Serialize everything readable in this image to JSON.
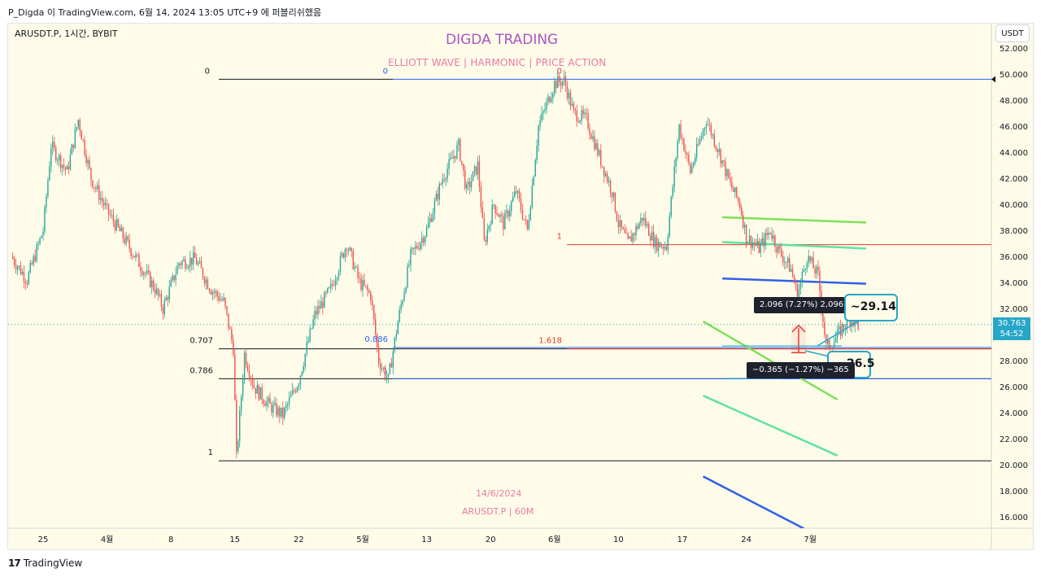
{
  "window": {
    "caption": "P_Digda 이 TradingView.com, 6월 14, 2024 13:05 UTC+9 에 퍼블리쉬했음"
  },
  "symbol_line": "ARUSDT.P, 1시간, BYBIT",
  "brand": {
    "title": "DIGDA TRADING",
    "subtitle": "ELLIOTT WAVE   |   HARMONIC   |   PRICE ACTION"
  },
  "stamp": {
    "date": "14/6/2024",
    "symbol": "ARUSDT.P | 60M"
  },
  "currency_button": "USDT",
  "last_price": {
    "price": "30.763",
    "countdown": "54:52"
  },
  "footer": {
    "logo_text": "TradingView"
  },
  "tooltips": {
    "upper": "2.096 (7.27%) 2,096",
    "lower": "−0.365 (−1.27%) −365"
  },
  "callouts": {
    "upper": "~29.14",
    "lower": "26.5"
  },
  "chart_data": {
    "type": "line",
    "series_kind": "candlestick",
    "ylim": [
      14.8,
      53.0
    ],
    "y_ticks": [
      "16.000",
      "18.000",
      "20.000",
      "22.000",
      "24.000",
      "26.000",
      "28.000",
      "30.000",
      "32.000",
      "34.000",
      "36.000",
      "38.000",
      "40.000",
      "42.000",
      "44.000",
      "46.000",
      "48.000",
      "50.000",
      "52.000"
    ],
    "x_ticks": [
      "25",
      "4월",
      "8",
      "15",
      "22",
      "5월",
      "13",
      "20",
      "6월",
      "10",
      "17",
      "24",
      "7월"
    ],
    "x_tick_values": [
      0,
      4,
      8,
      12,
      16,
      20,
      24,
      28,
      32,
      36,
      40,
      44,
      48
    ],
    "xlim": [
      -2.0,
      51.5
    ],
    "price_path": [
      [
        -2.0,
        36.0
      ],
      [
        -1.0,
        34.2
      ],
      [
        0.0,
        38.0
      ],
      [
        0.5,
        44.5
      ],
      [
        1.5,
        42.5
      ],
      [
        2.2,
        46.5
      ],
      [
        3.0,
        42.0
      ],
      [
        4.0,
        39.5
      ],
      [
        5.0,
        37.5
      ],
      [
        6.0,
        35.5
      ],
      [
        7.0,
        33.5
      ],
      [
        7.5,
        32.0
      ],
      [
        8.5,
        35.5
      ],
      [
        9.5,
        35.8
      ],
      [
        10.5,
        33.5
      ],
      [
        11.3,
        32.5
      ],
      [
        11.9,
        29.0
      ],
      [
        12.1,
        20.5
      ],
      [
        12.6,
        28.5
      ],
      [
        13.2,
        26.0
      ],
      [
        14.2,
        24.5
      ],
      [
        15.0,
        23.8
      ],
      [
        16.0,
        26.5
      ],
      [
        16.5,
        29.0
      ],
      [
        17.0,
        31.5
      ],
      [
        18.0,
        33.5
      ],
      [
        19.0,
        37.0
      ],
      [
        19.8,
        34.0
      ],
      [
        20.5,
        33.0
      ],
      [
        21.0,
        28.0
      ],
      [
        21.6,
        26.5
      ],
      [
        22.2,
        31.0
      ],
      [
        23.0,
        36.0
      ],
      [
        24.0,
        38.0
      ],
      [
        25.0,
        42.0
      ],
      [
        26.0,
        44.5
      ],
      [
        26.5,
        41.0
      ],
      [
        27.2,
        43.0
      ],
      [
        27.6,
        37.0
      ],
      [
        28.2,
        40.0
      ],
      [
        28.8,
        38.5
      ],
      [
        29.6,
        41.0
      ],
      [
        30.3,
        38.0
      ],
      [
        31.0,
        46.0
      ],
      [
        32.0,
        49.3
      ],
      [
        32.6,
        49.5
      ],
      [
        33.2,
        47.0
      ],
      [
        34.0,
        46.5
      ],
      [
        35.0,
        43.0
      ],
      [
        35.6,
        41.0
      ],
      [
        36.0,
        38.5
      ],
      [
        36.6,
        37.0
      ],
      [
        37.5,
        39.0
      ],
      [
        38.3,
        37.0
      ],
      [
        39.0,
        36.8
      ],
      [
        39.8,
        46.0
      ],
      [
        40.5,
        42.5
      ],
      [
        41.5,
        46.5
      ],
      [
        42.3,
        44.0
      ],
      [
        43.0,
        41.5
      ],
      [
        43.6,
        40.0
      ],
      [
        44.0,
        37.5
      ],
      [
        44.8,
        36.6
      ],
      [
        45.5,
        38.0
      ],
      [
        46.0,
        36.5
      ],
      [
        46.8,
        35.0
      ],
      [
        47.2,
        33.0
      ],
      [
        47.8,
        36.0
      ],
      [
        48.5,
        34.5
      ],
      [
        49.0,
        29.0
      ],
      [
        49.5,
        29.5
      ],
      [
        50.0,
        30.5
      ],
      [
        50.5,
        31.2
      ],
      [
        51.0,
        30.763
      ]
    ],
    "levels": [
      {
        "label": "0",
        "value": 49.6,
        "color": "#131722"
      },
      {
        "label": "0.707",
        "value": 28.9,
        "color": "#131722"
      },
      {
        "label": "0.786",
        "value": 26.6,
        "color": "#131722"
      },
      {
        "label": "1",
        "value": 20.3,
        "color": "#131722"
      },
      {
        "label": "0",
        "value": 49.6,
        "color": "#2962ff"
      },
      {
        "label": "0.886",
        "value": 29.0,
        "color": "#2962ff"
      },
      {
        "label": "1",
        "value": 26.6,
        "color": "#2962ff"
      },
      {
        "label": "0",
        "value": 49.6,
        "color": "#e53935"
      },
      {
        "label": "1",
        "value": 36.9,
        "color": "#e53935"
      },
      {
        "label": "1.618",
        "value": 28.9,
        "color": "#e53935"
      }
    ],
    "trend_lines": [
      {
        "color": "#7ee05a",
        "from": [
          42.5,
          39.0
        ],
        "to": [
          51.5,
          38.6
        ]
      },
      {
        "color": "#5fe2a0",
        "from": [
          42.5,
          37.1
        ],
        "to": [
          51.5,
          36.6
        ]
      },
      {
        "color": "#3060e8",
        "from": [
          42.5,
          34.3
        ],
        "to": [
          51.5,
          33.9
        ]
      },
      {
        "color": "#7ee05a",
        "from": [
          41.3,
          31.0
        ],
        "to": [
          49.7,
          25.0
        ]
      },
      {
        "color": "#5fe2a0",
        "from": [
          41.3,
          25.3
        ],
        "to": [
          49.7,
          20.7
        ]
      },
      {
        "color": "#3060e8",
        "from": [
          41.3,
          19.1
        ],
        "to": [
          47.6,
          15.1
        ]
      },
      {
        "color": "#e53935",
        "from": [
          40.2,
          54.5
        ],
        "to": [
          40.5,
          53.9
        ]
      }
    ],
    "measures": [
      {
        "from": 28.6,
        "to": 30.7,
        "color": "#e53935"
      }
    ],
    "current_price": 30.763,
    "grid": false,
    "colors": {
      "up": "#26a69a",
      "down": "#ef5350",
      "background": "#fefce8",
      "accent": "#26a6c9"
    }
  }
}
